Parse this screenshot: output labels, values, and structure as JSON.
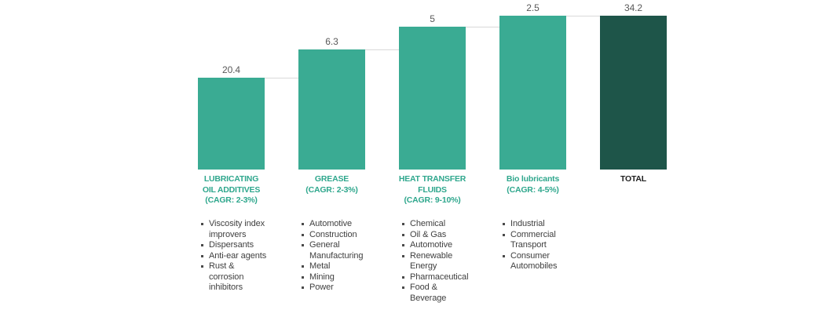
{
  "chart_data": {
    "type": "waterfall",
    "title": "",
    "xlabel": "",
    "ylabel": "",
    "ylim": [
      0,
      34.2
    ],
    "grid": false,
    "legend": false,
    "colors": {
      "segment_bar": "#3AAB93",
      "total_bar": "#1E5549",
      "category_label": "#2FA78D",
      "total_label": "#1F1F1F",
      "value_label": "#595959",
      "bullet_text": "#3F3F3F",
      "connector": "#D9D9D9",
      "background": "#FFFFFF"
    },
    "categories": [
      {
        "id": "lubricating-oil-additives",
        "label": "LUBRICATING\nOIL ADDITIVES\n(CAGR: 2-3%)",
        "value": 20.4,
        "value_label": "20.4",
        "kind": "segment",
        "bullets": [
          "Viscosity index\nimprovers",
          "Dispersants",
          "Anti-ear agents",
          "Rust &\ncorrosion\ninhibitors"
        ]
      },
      {
        "id": "grease",
        "label": "GREASE\n(CAGR: 2-3%)",
        "value": 6.3,
        "value_label": "6.3",
        "kind": "segment",
        "bullets": [
          "Automotive",
          "Construction",
          "General\nManufacturing",
          "Metal",
          "Mining",
          "Power"
        ]
      },
      {
        "id": "heat-transfer-fluids",
        "label": "HEAT TRANSFER\nFLUIDS\n(CAGR: 9-10%)",
        "value": 5,
        "value_label": "5",
        "kind": "segment",
        "bullets": [
          "Chemical",
          "Oil & Gas",
          "Automotive",
          "Renewable\nEnergy",
          "Pharmaceutical",
          "Food &\nBeverage"
        ]
      },
      {
        "id": "bio-lubricants",
        "label": "Bio lubricants\n(CAGR: 4-5%)",
        "value": 2.5,
        "value_label": "2.5",
        "kind": "segment",
        "bullets": [
          "Industrial",
          "Commercial\nTransport",
          "Consumer\nAutomobiles"
        ]
      },
      {
        "id": "total",
        "label": "TOTAL",
        "value": 34.2,
        "value_label": "34.2",
        "kind": "total",
        "bullets": []
      }
    ]
  }
}
